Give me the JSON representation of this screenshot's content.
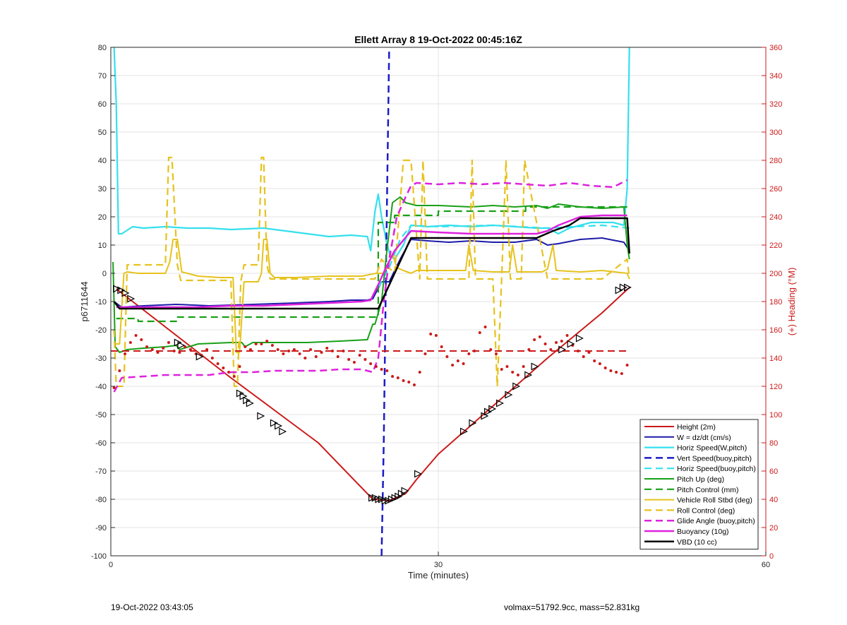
{
  "footer": {
    "timestamp": "19-Oct-2022 03:43:05",
    "volmax_mass": "volmax=51792.9cc, mass=52.831kg"
  },
  "chart_data": {
    "type": "line",
    "title": "Ellett Array 8 19-Oct-2022 00:45:16Z",
    "xlabel": "Time (minutes)",
    "ylabel": "p6711644",
    "y2label": "(+) Heading (°M)",
    "xlim": [
      0,
      60
    ],
    "ylim": [
      -100,
      80
    ],
    "y2lim": [
      0,
      360
    ],
    "xticks": [
      0,
      30,
      60
    ],
    "yticks": [
      -100,
      -90,
      -80,
      -70,
      -60,
      -50,
      -40,
      -30,
      -20,
      -10,
      0,
      10,
      20,
      30,
      40,
      50,
      60,
      70,
      80
    ],
    "y2ticks": [
      0,
      20,
      40,
      60,
      80,
      100,
      120,
      140,
      160,
      180,
      200,
      220,
      240,
      260,
      280,
      300,
      320,
      340,
      360
    ],
    "grid": true,
    "legend_position": "bottom-right",
    "series": [
      {
        "name": "Height (2m)",
        "color": "#cc1a1a",
        "style": "solid",
        "width": 2,
        "x": [
          0.5,
          7,
          11,
          15,
          19,
          24,
          25.5,
          27,
          28,
          30,
          35,
          40,
          45,
          47.5
        ],
        "y": [
          -5.5,
          -25,
          -37,
          -48.5,
          -60,
          -80,
          -80.5,
          -78,
          -73,
          -64,
          -47,
          -30,
          -14,
          -5
        ]
      },
      {
        "name": "W = dz/dt (cm/s)",
        "color": "#1c1ca8",
        "style": "solid",
        "width": 2,
        "x": [
          0.3,
          1,
          3,
          6,
          9,
          13,
          17,
          20,
          22,
          23.5,
          24,
          24.8,
          25.5,
          26.5,
          27.5,
          29,
          31,
          33,
          35,
          37,
          39,
          40,
          41,
          43,
          45,
          47,
          47.5
        ],
        "y": [
          -10,
          -12,
          -11.5,
          -11,
          -11.5,
          -11,
          -10.5,
          -10,
          -9.5,
          -9.5,
          -9,
          -3,
          -3,
          5,
          12,
          11.5,
          11,
          11.5,
          11,
          11,
          12,
          10,
          10.5,
          12,
          12.5,
          11,
          8
        ]
      },
      {
        "name": "Horiz Speed(W,pitch)",
        "color": "#34e0ee",
        "style": "solid",
        "width": 2.2,
        "x": [
          0.3,
          0.5,
          0.7,
          1,
          2,
          3,
          5,
          7,
          9,
          11,
          14,
          16,
          18,
          20,
          22,
          23.5,
          23.8,
          24.2,
          24.5,
          24.8,
          25.2,
          25.6,
          26,
          26.8,
          27.5,
          29,
          31,
          33,
          35,
          37,
          39,
          40,
          41,
          42,
          44,
          46,
          47,
          47.3,
          47.5
        ],
        "y": [
          80,
          60,
          14,
          14,
          16.5,
          16,
          16.5,
          16,
          16,
          15.5,
          16,
          15,
          14,
          13,
          13.5,
          13,
          8,
          22,
          28,
          20,
          12,
          6,
          5,
          10,
          17,
          16.5,
          17,
          16.5,
          17,
          16.5,
          16,
          16,
          14,
          16,
          18,
          18,
          17,
          30,
          80
        ]
      },
      {
        "name": "Vert Speed(buoy,pitch)",
        "color": "#1c1cc8",
        "style": "dash",
        "width": 2.5,
        "x": [
          24.8,
          25.0,
          25.2,
          25.5
        ],
        "y": [
          -100,
          -60,
          0,
          80
        ]
      },
      {
        "name": "Horiz Speed(buoy,pitch)",
        "color": "#34e0ee",
        "style": "dash",
        "width": 2.2,
        "x": [
          24.5,
          25.5,
          26.5,
          27.5,
          30,
          35,
          40,
          45,
          47.5
        ],
        "y": [
          -5,
          2,
          12,
          17,
          16.5,
          17,
          16,
          17,
          16
        ]
      },
      {
        "name": "Pitch Up (deg)",
        "color": "#18a018",
        "style": "solid",
        "width": 2,
        "x": [
          0.2,
          0.4,
          0.8,
          1.5,
          3,
          5,
          6,
          6.3,
          8,
          11,
          12,
          12.3,
          13,
          15,
          18,
          21,
          23.5,
          24,
          24.2,
          24.8,
          25.2,
          25.8,
          26.5,
          27,
          28,
          30,
          33,
          35,
          37,
          39,
          40,
          41,
          43,
          45,
          47,
          47.3,
          47.5
        ],
        "y": [
          4,
          -26,
          -28,
          -27,
          -26.5,
          -26,
          -25.5,
          -27,
          -25,
          -24.5,
          -24.5,
          -26,
          -24.5,
          -24.5,
          -24.5,
          -24,
          -23.5,
          -18,
          -18,
          -10,
          5,
          25,
          27,
          25,
          24,
          24,
          23.5,
          24,
          23.5,
          24,
          23,
          24.5,
          23.5,
          23,
          23.5,
          10,
          5
        ]
      },
      {
        "name": "Pitch Control (mm)",
        "color": "#18a018",
        "style": "dash",
        "width": 2.2,
        "x": [
          0.5,
          2.5,
          2.5,
          6,
          6,
          24.5,
          24.5,
          26,
          26,
          30,
          30,
          38,
          38,
          47.5
        ],
        "y": [
          -16,
          -16,
          -17,
          -17,
          -15.5,
          -15.5,
          18,
          18,
          20.5,
          20.5,
          22,
          22,
          23.5,
          23.5
        ]
      },
      {
        "name": "Vehicle Roll Stbd (deg)",
        "color": "#e6c21e",
        "style": "solid",
        "width": 2,
        "x": [
          0.3,
          0.8,
          1.2,
          1.5,
          2.5,
          5,
          5.4,
          5.7,
          6.1,
          6.5,
          8,
          10,
          11.2,
          11.5,
          11.8,
          12.2,
          13.5,
          13.8,
          14,
          14.3,
          14.6,
          15,
          17,
          20,
          23,
          24.3,
          25,
          25.3,
          25.8,
          26.2,
          26.8,
          27.5,
          28,
          30,
          32.5,
          32.8,
          33.2,
          35,
          36.5,
          36.8,
          37.2,
          39.5,
          40,
          40.5,
          40.8,
          43,
          45,
          47.3,
          47.5
        ],
        "y": [
          -25,
          -25,
          0,
          0.5,
          0,
          0,
          4,
          12,
          12,
          0.5,
          -1,
          -1.5,
          -1.5,
          -28,
          -28,
          -3,
          -3,
          0,
          12,
          12,
          0,
          -1.5,
          -1.5,
          -1,
          -1,
          0,
          0,
          2,
          7,
          2,
          1,
          0,
          1,
          1,
          1,
          10,
          1,
          0.5,
          0.5,
          10,
          0.5,
          0.5,
          1.5,
          10,
          1,
          0.5,
          1,
          0,
          -2
        ]
      },
      {
        "name": "Roll Control (deg)",
        "color": "#e6c21e",
        "style": "dash",
        "width": 2.2,
        "x": [
          0.3,
          0.5,
          1.2,
          1.5,
          3,
          5,
          5.3,
          5.6,
          6.1,
          6.4,
          8,
          11,
          11.3,
          11.6,
          11.9,
          12.2,
          13.5,
          13.8,
          14,
          14.3,
          14.6,
          15,
          18,
          22,
          24.2,
          24.8,
          25.2,
          26,
          26.8,
          27.5,
          28.3,
          28.6,
          29,
          31,
          32.8,
          33.1,
          33.4,
          35,
          35.4,
          35.8,
          36.2,
          36.6,
          37.2,
          37.6,
          37.9,
          40,
          40.8,
          41.2,
          41.5,
          43,
          45,
          47.3,
          47.5
        ],
        "y": [
          -20,
          -40,
          -40,
          3,
          3,
          3,
          41,
          41,
          3,
          -2.5,
          -2.5,
          -2.5,
          -40,
          -40,
          -3,
          3,
          3,
          41,
          41,
          3,
          -2,
          -2,
          -2,
          -2,
          -2,
          5,
          3,
          0,
          40,
          40,
          -2,
          40,
          -2,
          -2,
          -2,
          40,
          -2,
          -2,
          -40,
          -2,
          40,
          -2,
          -2,
          -2,
          40,
          -2,
          -2,
          -2,
          -2,
          -2,
          -2,
          5,
          -2
        ]
      },
      {
        "name": "Glide Angle (buoy,pitch)",
        "color": "#dd22dd",
        "style": "dash",
        "width": 2.5,
        "x": [
          0.3,
          1,
          3,
          5,
          7,
          9,
          11,
          13,
          15,
          17,
          19,
          21,
          23,
          24,
          24.5,
          25,
          25.5,
          26.2,
          27,
          27.5,
          28,
          30,
          32,
          34,
          36,
          38,
          40,
          42,
          44,
          46,
          47.3
        ],
        "y": [
          -42,
          -37,
          -36.5,
          -36,
          -36,
          -36,
          -35,
          -35,
          -34.5,
          -34.5,
          -34.5,
          -34,
          -34,
          -35,
          -30,
          -10,
          5,
          20,
          27,
          31,
          32,
          31.5,
          32,
          31.5,
          32,
          31.5,
          31,
          32,
          31,
          30.5,
          33
        ]
      },
      {
        "name": "Buoyancy (10g)",
        "color": "#dd22dd",
        "style": "solid",
        "width": 2.5,
        "x": [
          0.5,
          1.5,
          3,
          5,
          8,
          11,
          14,
          17,
          20,
          23,
          23.8,
          24.5,
          25.2,
          26,
          27.5,
          30,
          33,
          36,
          39,
          40,
          41,
          43,
          45,
          47.3
        ],
        "y": [
          -12,
          -12,
          -12,
          -12,
          -12,
          -11.5,
          -11.5,
          -11,
          -10.5,
          -10,
          -9.5,
          -4,
          2,
          8,
          15,
          14.5,
          14,
          14,
          14,
          15,
          17,
          20,
          20.5,
          20.5
        ]
      },
      {
        "name": "VBD (10 cc)",
        "color": "#000000",
        "style": "solid",
        "width": 2.5,
        "x": [
          0.3,
          0.8,
          1.5,
          3,
          5,
          8,
          11,
          14,
          17,
          20,
          24,
          24.5,
          27.5,
          30,
          35,
          39,
          40.5,
          42,
          43,
          45,
          47.3,
          47.5
        ],
        "y": [
          -10,
          -12.5,
          -12.5,
          -12.5,
          -12.5,
          -12.5,
          -12.5,
          -12.5,
          -12.5,
          -12.5,
          -12.5,
          -12.5,
          12.5,
          12.5,
          12.5,
          12.5,
          15,
          17,
          19.5,
          19.5,
          19.5,
          7
        ]
      },
      {
        "name": "",
        "color": "#cc1a1a",
        "style": "dash",
        "width": 2,
        "x": [
          0,
          47.5
        ],
        "y": [
          -27.5,
          -27.5
        ]
      }
    ],
    "heading_points": {
      "axis": "right",
      "color": "#cc1a1a",
      "x": [
        0.3,
        0.8,
        1.3,
        1.8,
        2.3,
        2.8,
        3.3,
        3.8,
        4.3,
        4.8,
        5.3,
        5.8,
        6.3,
        6.8,
        7.3,
        7.8,
        8.3,
        8.8,
        9.3,
        9.8,
        10.3,
        10.8,
        11.3,
        11.8,
        12.3,
        12.8,
        13.3,
        13.8,
        14.3,
        14.8,
        15.3,
        15.8,
        16.3,
        16.8,
        17.3,
        17.8,
        18.3,
        18.8,
        19.3,
        19.8,
        20.3,
        20.8,
        21.3,
        21.8,
        22.3,
        22.8,
        23.3,
        23.8,
        24.3,
        24.8,
        25.3,
        25.8,
        26.3,
        26.8,
        27.3,
        27.8,
        28.3,
        28.8,
        29.3,
        29.8,
        30.3,
        30.8,
        31.3,
        31.8,
        32.3,
        32.8,
        33.3,
        33.8,
        34.3,
        34.8,
        35.3,
        35.8,
        36.3,
        36.8,
        37.3,
        37.8,
        38.3,
        38.8,
        39.3,
        39.8,
        40.3,
        40.8,
        41.3,
        41.8,
        42.3,
        42.8,
        43.3,
        43.8,
        44.3,
        44.8,
        45.3,
        45.8,
        46.3,
        46.8,
        47.3
      ],
      "y": [
        119,
        131,
        143,
        151,
        156,
        153,
        148,
        146,
        144,
        147,
        151,
        145,
        144,
        148,
        146,
        143,
        142,
        146,
        140,
        136,
        133,
        130,
        127,
        134,
        148,
        146,
        150,
        150,
        152,
        149,
        146,
        143,
        145,
        146,
        143,
        140,
        146,
        141,
        144,
        147,
        145,
        141,
        145,
        139,
        137,
        142,
        139,
        136,
        134,
        132,
        131,
        127,
        126,
        124,
        123,
        121,
        130,
        143,
        157,
        156,
        148,
        141,
        135,
        138,
        136,
        143,
        145,
        158,
        162,
        146,
        143,
        132,
        134,
        130,
        128,
        134,
        146,
        153,
        155,
        150,
        146,
        151,
        152,
        156,
        149,
        145,
        141,
        144,
        138,
        136,
        133,
        131,
        130,
        129,
        135
      ]
    },
    "height_markers": {
      "color": "#000000",
      "x": [
        0.5,
        0.9,
        1.3,
        1.8,
        6.1,
        6.4,
        8.1,
        11.8,
        12.1,
        12.4,
        12.7,
        13.7,
        14.9,
        15.3,
        15.7,
        23.9,
        24.2,
        24.5,
        24.8,
        25.1,
        25.4,
        25.7,
        26,
        26.3,
        26.6,
        26.9,
        28.1,
        32.3,
        33.1,
        34.2,
        34.5,
        34.9,
        35.6,
        36.4,
        37.1,
        38.2,
        38.8,
        41.3,
        42.1,
        42.9,
        46.5,
        46.9,
        47.3
      ],
      "y": [
        -5.5,
        -6,
        -7,
        -9,
        -24.5,
        -25.5,
        -29.5,
        -42.5,
        -43.5,
        -45,
        -46,
        -50.5,
        -53,
        -54,
        -56,
        -79.5,
        -79.5,
        -80,
        -80,
        -80.5,
        -80.5,
        -80,
        -79.5,
        -79,
        -78,
        -77,
        -71,
        -56,
        -53,
        -50.5,
        -49,
        -48,
        -46,
        -43,
        -40,
        -36,
        -33,
        -27,
        -25,
        -23,
        -6,
        -5,
        -5
      ]
    }
  }
}
